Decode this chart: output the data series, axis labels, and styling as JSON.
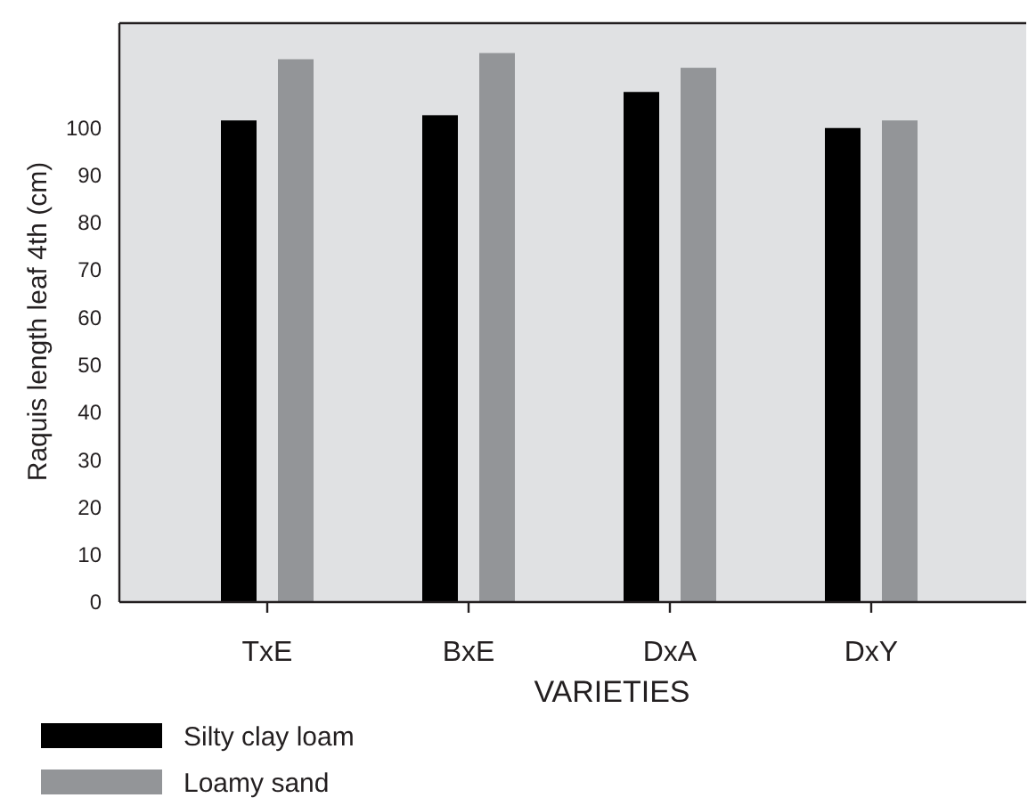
{
  "chart_data": {
    "type": "bar",
    "xlabel": "VARIETIES",
    "ylabel": "Raquis length leaf 4th (cm)",
    "categories": [
      "TxE",
      "BxE",
      "DxA",
      "DxY"
    ],
    "series": [
      {
        "name": "Silty clay loam",
        "color": "#000000",
        "values": [
          101.5,
          102.6,
          107.5,
          99.9
        ]
      },
      {
        "name": "Loamy sand",
        "color": "#939598",
        "values": [
          114.4,
          115.7,
          112.6,
          101.5
        ]
      }
    ],
    "ylim": [
      0,
      122
    ],
    "yticks": [
      0,
      10,
      20,
      30,
      40,
      50,
      60,
      70,
      80,
      90,
      100
    ],
    "grid": false,
    "legend": "bottom left"
  }
}
